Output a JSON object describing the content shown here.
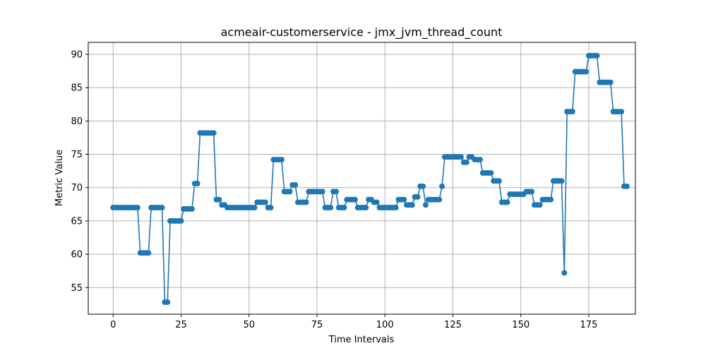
{
  "chart_data": {
    "type": "line",
    "title": "acmeair-customerservice - jmx_jvm_thread_count",
    "xlabel": "Time Intervals",
    "ylabel": "Metric Value",
    "xlim": [
      -9.15,
      192.15
    ],
    "ylim": [
      51.0,
      91.8
    ],
    "xticks": [
      0,
      25,
      50,
      75,
      100,
      125,
      150,
      175
    ],
    "yticks": [
      55,
      60,
      65,
      70,
      75,
      80,
      85,
      90
    ],
    "grid": true,
    "color": "#1f77b4",
    "marker": "circle",
    "series": [
      {
        "values": [
          67,
          67,
          67,
          67,
          67,
          67,
          67,
          67,
          67,
          67,
          60.2,
          60.2,
          60.2,
          60.2,
          67,
          67,
          67,
          67,
          67,
          52.8,
          52.8,
          65,
          65,
          65,
          65,
          65,
          66.8,
          66.8,
          66.8,
          66.8,
          70.6,
          70.6,
          78.2,
          78.2,
          78.2,
          78.2,
          78.2,
          78.2,
          68.2,
          68.2,
          67.4,
          67.4,
          67,
          67,
          67,
          67,
          67,
          67,
          67,
          67,
          67,
          67,
          67,
          67.8,
          67.8,
          67.8,
          67.8,
          67,
          67,
          74.2,
          74.2,
          74.2,
          74.2,
          69.4,
          69.4,
          69.4,
          70.4,
          70.4,
          67.8,
          67.8,
          67.8,
          67.8,
          69.4,
          69.4,
          69.4,
          69.4,
          69.4,
          69.4,
          67,
          67,
          67,
          69.4,
          69.4,
          67,
          67,
          67,
          68.2,
          68.2,
          68.2,
          68.2,
          67,
          67,
          67,
          67,
          68.2,
          68.2,
          67.8,
          67.8,
          67,
          67,
          67,
          67,
          67,
          67,
          67,
          68.2,
          68.2,
          68.2,
          67.4,
          67.4,
          67.4,
          68.6,
          68.6,
          70.2,
          70.2,
          67.4,
          68.2,
          68.2,
          68.2,
          68.2,
          68.2,
          70.2,
          74.6,
          74.6,
          74.6,
          74.6,
          74.6,
          74.6,
          74.6,
          73.8,
          73.8,
          74.6,
          74.6,
          74.2,
          74.2,
          74.2,
          72.2,
          72.2,
          72.2,
          72.2,
          71,
          71,
          71,
          67.8,
          67.8,
          67.8,
          69,
          69,
          69,
          69,
          69,
          69,
          69.4,
          69.4,
          69.4,
          67.4,
          67.4,
          67.4,
          68.2,
          68.2,
          68.2,
          68.2,
          71,
          71,
          71,
          71,
          57.2,
          81.4,
          81.4,
          81.4,
          87.4,
          87.4,
          87.4,
          87.4,
          87.4,
          89.8,
          89.8,
          89.8,
          89.8,
          85.8,
          85.8,
          85.8,
          85.8,
          85.8,
          81.4,
          81.4,
          81.4,
          81.4,
          70.2,
          70.2
        ]
      }
    ]
  }
}
